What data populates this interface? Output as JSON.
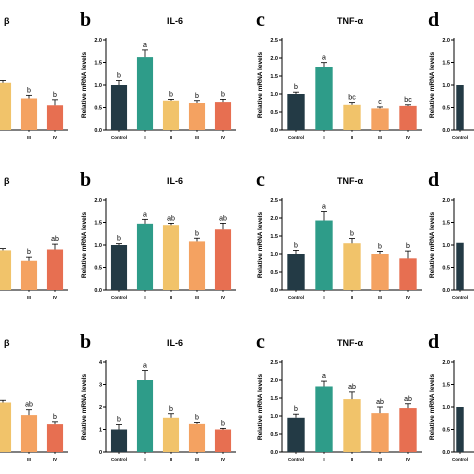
{
  "colors": {
    "control": "#233a45",
    "I": "#2e9c89",
    "II": "#f1c36a",
    "III": "#f4a261",
    "IV": "#e76f51",
    "axis": "#000000"
  },
  "chart_data": [
    {
      "type": "bar",
      "panel": "b",
      "row": 1,
      "title": "IL-6",
      "ylabel": "Relative mRNA levels",
      "categories": [
        "Control",
        "I",
        "II",
        "III",
        "IV"
      ],
      "values": [
        1.0,
        1.62,
        0.65,
        0.6,
        0.62
      ],
      "errors": [
        0.1,
        0.16,
        0.03,
        0.05,
        0.06
      ],
      "labels": [
        "b",
        "a",
        "b",
        "b",
        "b"
      ],
      "ylim": [
        0,
        2.0
      ],
      "yticks": [
        "0.0",
        "0.5",
        "1.0",
        "1.5",
        "2.0"
      ]
    },
    {
      "type": "bar",
      "panel": "c",
      "row": 1,
      "title": "TNF-α",
      "ylabel": "Relative mRNA levels",
      "categories": [
        "Control",
        "I",
        "II",
        "III",
        "IV"
      ],
      "values": [
        1.0,
        1.75,
        0.7,
        0.6,
        0.67
      ],
      "errors": [
        0.05,
        0.12,
        0.06,
        0.04,
        0.03
      ],
      "labels": [
        "b",
        "a",
        "bc",
        "c",
        "bc"
      ],
      "ylim": [
        0,
        2.5
      ],
      "yticks": [
        "0.0",
        "0.5",
        "1.0",
        "1.5",
        "2.0",
        "2.5"
      ]
    },
    {
      "type": "bar",
      "panel": "d",
      "row": 1,
      "title": "",
      "ylabel": "Relative mRNA levels",
      "categories": [
        "Control"
      ],
      "values": [
        1.0
      ],
      "errors": [
        0.0
      ],
      "labels": [
        ""
      ],
      "ylim": [
        0,
        2.0
      ],
      "yticks": [
        "0.0",
        "0.5",
        "1.0",
        "1.5",
        "2.0"
      ]
    },
    {
      "type": "bar",
      "panel": "b",
      "row": 2,
      "title": "IL-6",
      "ylabel": "Relative mRNA levels",
      "categories": [
        "Control",
        "I",
        "II",
        "III",
        "IV"
      ],
      "values": [
        1.0,
        1.47,
        1.44,
        1.08,
        1.35
      ],
      "errors": [
        0.03,
        0.1,
        0.04,
        0.07,
        0.13
      ],
      "labels": [
        "b",
        "a",
        "ab",
        "b",
        "ab"
      ],
      "ylim": [
        0,
        2.0
      ],
      "yticks": [
        "0.0",
        "0.5",
        "1.0",
        "1.5",
        "2.0"
      ]
    },
    {
      "type": "bar",
      "panel": "c",
      "row": 2,
      "title": "TNF-α",
      "ylabel": "Relative mRNA levels",
      "categories": [
        "Control",
        "I",
        "II",
        "III",
        "IV"
      ],
      "values": [
        1.0,
        1.93,
        1.3,
        1.0,
        0.88
      ],
      "errors": [
        0.1,
        0.25,
        0.13,
        0.07,
        0.2
      ],
      "labels": [
        "b",
        "a",
        "b",
        "b",
        "b"
      ],
      "ylim": [
        0,
        2.5
      ],
      "yticks": [
        "0.0",
        "0.5",
        "1.0",
        "1.5",
        "2.0",
        "2.5"
      ]
    },
    {
      "type": "bar",
      "panel": "d",
      "row": 2,
      "title": "",
      "ylabel": "Relative mRNA levels",
      "categories": [
        "Control"
      ],
      "values": [
        1.05
      ],
      "errors": [
        0.0
      ],
      "labels": [
        ""
      ],
      "ylim": [
        0,
        2.0
      ],
      "yticks": [
        "0.0",
        "0.5",
        "1.0",
        "1.5",
        "2.0"
      ]
    },
    {
      "type": "bar",
      "panel": "b",
      "row": 3,
      "title": "IL-6",
      "ylabel": "Relative mRNA levels",
      "categories": [
        "Control",
        "I",
        "II",
        "III",
        "IV"
      ],
      "values": [
        1.0,
        3.2,
        1.52,
        1.25,
        1.0
      ],
      "errors": [
        0.22,
        0.42,
        0.18,
        0.06,
        0.05
      ],
      "labels": [
        "b",
        "a",
        "b",
        "b",
        "b"
      ],
      "ylim": [
        0,
        4
      ],
      "yticks": [
        "0",
        "1",
        "2",
        "3",
        "4"
      ]
    },
    {
      "type": "bar",
      "panel": "c",
      "row": 3,
      "title": "TNF-α",
      "ylabel": "Relative mRNA levels",
      "categories": [
        "Control",
        "I",
        "II",
        "III",
        "IV"
      ],
      "values": [
        0.95,
        1.82,
        1.47,
        1.08,
        1.22
      ],
      "errors": [
        0.1,
        0.15,
        0.2,
        0.17,
        0.12
      ],
      "labels": [
        "b",
        "a",
        "ab",
        "ab",
        "ab"
      ],
      "ylim": [
        0,
        2.5
      ],
      "yticks": [
        "0.0",
        "0.5",
        "1.0",
        "1.5",
        "2.0",
        "2.5"
      ]
    },
    {
      "type": "bar",
      "panel": "d",
      "row": 3,
      "title": "",
      "ylabel": "Relative mRNA levels",
      "categories": [
        "Control"
      ],
      "values": [
        1.0
      ],
      "errors": [
        0.0
      ],
      "labels": [
        ""
      ],
      "ylim": [
        0,
        2.0
      ],
      "yticks": [
        "0.0",
        "0.5",
        "1.0",
        "1.5",
        "2.0"
      ]
    },
    {
      "type": "bar",
      "panel": "",
      "row": 1,
      "title": "β",
      "ylabel": "",
      "categories": [
        "",
        "",
        "",
        "III",
        "IV"
      ],
      "values": [
        null,
        null,
        1.05,
        0.7,
        0.55
      ],
      "errors": [
        0,
        0,
        0.05,
        0.07,
        0.12
      ],
      "labels": [
        "",
        "",
        "",
        "b",
        "b"
      ],
      "ylim": [
        0,
        2.0
      ],
      "yticks": []
    },
    {
      "type": "bar",
      "panel": "",
      "row": 2,
      "title": "β",
      "ylabel": "",
      "categories": [
        "",
        "",
        "",
        "III",
        "IV"
      ],
      "values": [
        null,
        null,
        0.88,
        0.65,
        0.9
      ],
      "errors": [
        0,
        0,
        0.04,
        0.08,
        0.12
      ],
      "labels": [
        "",
        "",
        "",
        "b",
        "ab"
      ],
      "ylim": [
        0,
        2.0
      ],
      "yticks": []
    },
    {
      "type": "bar",
      "panel": "",
      "row": 3,
      "title": "β",
      "ylabel": "",
      "categories": [
        "",
        "",
        "",
        "III",
        "IV"
      ],
      "values": [
        null,
        null,
        1.1,
        0.82,
        0.62
      ],
      "errors": [
        0,
        0,
        0.05,
        0.12,
        0.05
      ],
      "labels": [
        "",
        "",
        "",
        "ab",
        "b"
      ],
      "ylim": [
        0,
        2.0
      ],
      "yticks": []
    }
  ]
}
